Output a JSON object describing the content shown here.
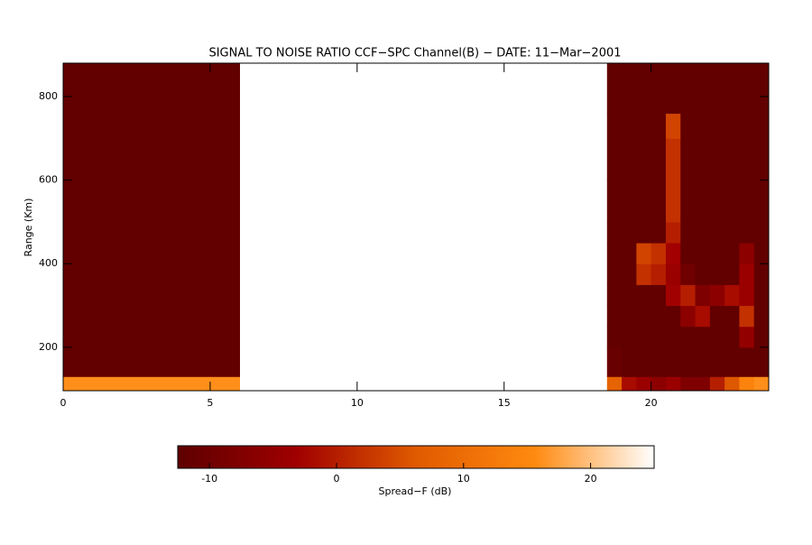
{
  "chart_data": {
    "type": "heatmap",
    "title": "SIGNAL TO NOISE RATIO CCF−SPC Channel(B) − DATE: 11−Mar−2001",
    "y_label": "Range (Km)",
    "colorbar_label": "Spread−F (dB)",
    "x_edges": [
      0,
      6,
      18.5,
      19,
      19.5,
      20,
      20.5,
      21,
      21.5,
      22,
      22.5,
      23,
      23.5,
      24
    ],
    "y_edges": [
      96,
      130,
      200,
      250,
      300,
      350,
      400,
      450,
      500,
      600,
      700,
      760,
      880
    ],
    "z": [
      [
        16,
        null,
        8,
        -2,
        -4,
        -6,
        -4,
        -8,
        -8,
        0,
        6,
        14,
        16
      ],
      [
        -12,
        null,
        -11,
        -12,
        -12,
        -12,
        -12,
        -12,
        -12,
        -12,
        -12,
        -12,
        -12
      ],
      [
        -12,
        null,
        -12,
        -12,
        -12,
        -12,
        -12,
        -12,
        -12,
        -12,
        -12,
        -5,
        -12
      ],
      [
        -12,
        null,
        -12,
        -12,
        -12,
        -12,
        -12,
        -6,
        -2,
        -12,
        -12,
        2,
        -12
      ],
      [
        -12,
        null,
        -12,
        -12,
        -12,
        -12,
        -3,
        0,
        -8,
        -6,
        -2,
        -4,
        -12
      ],
      [
        -12,
        null,
        -12,
        -12,
        2,
        0,
        -4,
        -10,
        -12,
        -12,
        -12,
        -4,
        -12
      ],
      [
        -12,
        null,
        -12,
        -12,
        4,
        2,
        -3,
        -12,
        -12,
        -12,
        -12,
        -6,
        -12
      ],
      [
        -12,
        null,
        -12,
        -12,
        -12,
        -12,
        0,
        -12,
        -12,
        -12,
        -12,
        -12,
        -12
      ],
      [
        -12,
        null,
        -12,
        -12,
        -12,
        -12,
        2,
        -12,
        -12,
        -12,
        -12,
        -12,
        -12
      ],
      [
        -12,
        null,
        -12,
        -12,
        -12,
        -12,
        2,
        -12,
        -12,
        -12,
        -12,
        -12,
        -12
      ],
      [
        -12,
        null,
        -12,
        -12,
        -12,
        -12,
        4,
        -12,
        -12,
        -12,
        -12,
        -12,
        -12
      ],
      [
        -12,
        null,
        -12,
        -12,
        -12,
        -12,
        -12,
        -12,
        -12,
        -12,
        -12,
        -12,
        -12
      ]
    ],
    "xlim": [
      0,
      24
    ],
    "xticks": [
      0,
      5,
      10,
      15,
      20
    ],
    "ylim": [
      96,
      880
    ],
    "yticks": [
      200,
      400,
      600,
      800
    ],
    "clim": [
      -12.5,
      25
    ],
    "cticks": [
      -10,
      0,
      10,
      20
    ],
    "colormap": [
      "#5e0000",
      "#a00000",
      "#e05a00",
      "#ff8a10",
      "#ffffff"
    ]
  }
}
